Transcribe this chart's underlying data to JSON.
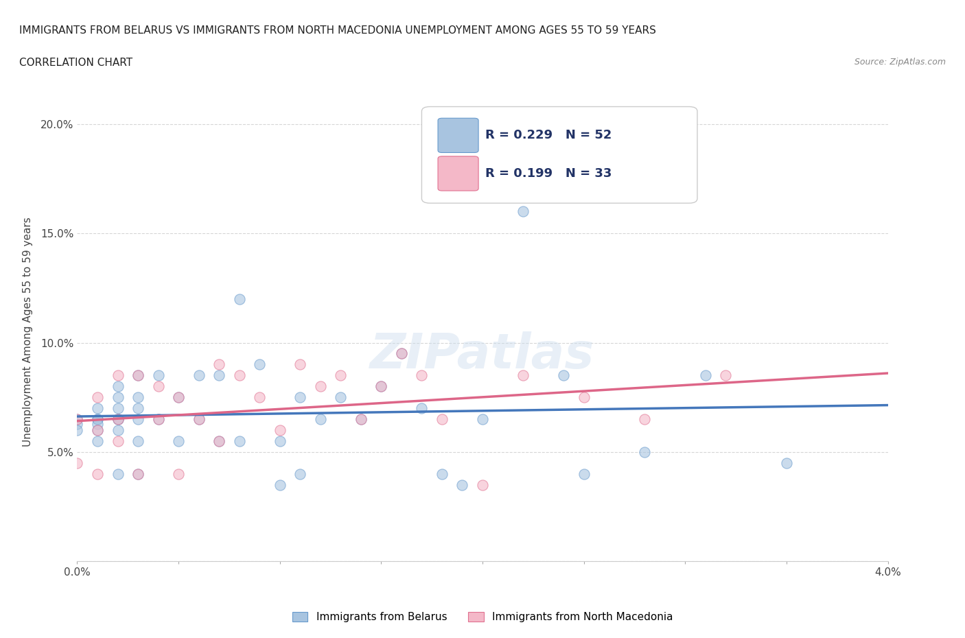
{
  "title_line1": "IMMIGRANTS FROM BELARUS VS IMMIGRANTS FROM NORTH MACEDONIA UNEMPLOYMENT AMONG AGES 55 TO 59 YEARS",
  "title_line2": "CORRELATION CHART",
  "source_text": "Source: ZipAtlas.com",
  "ylabel": "Unemployment Among Ages 55 to 59 years",
  "xlim": [
    0.0,
    0.04
  ],
  "ylim": [
    0.0,
    0.21
  ],
  "x_ticks": [
    0.0,
    0.005,
    0.01,
    0.015,
    0.02,
    0.025,
    0.03,
    0.035,
    0.04
  ],
  "y_ticks": [
    0.0,
    0.05,
    0.1,
    0.15,
    0.2
  ],
  "y_tick_labels": [
    "",
    "5.0%",
    "10.0%",
    "15.0%",
    "20.0%"
  ],
  "grid_color": "#cccccc",
  "belarus_color": "#a8c4e0",
  "belarus_color_dark": "#6699cc",
  "north_mac_color": "#f4b8c8",
  "north_mac_color_dark": "#e07090",
  "trend_belarus_color": "#4477bb",
  "trend_north_mac_color": "#dd6688",
  "belarus_x": [
    0.0,
    0.0,
    0.0,
    0.001,
    0.001,
    0.001,
    0.001,
    0.001,
    0.001,
    0.002,
    0.002,
    0.002,
    0.002,
    0.002,
    0.002,
    0.002,
    0.003,
    0.003,
    0.003,
    0.003,
    0.003,
    0.003,
    0.004,
    0.004,
    0.005,
    0.005,
    0.006,
    0.006,
    0.007,
    0.007,
    0.008,
    0.008,
    0.009,
    0.01,
    0.01,
    0.011,
    0.011,
    0.012,
    0.013,
    0.014,
    0.015,
    0.016,
    0.017,
    0.018,
    0.019,
    0.02,
    0.022,
    0.024,
    0.025,
    0.028,
    0.031,
    0.035
  ],
  "belarus_y": [
    0.065,
    0.063,
    0.06,
    0.07,
    0.065,
    0.065,
    0.063,
    0.06,
    0.055,
    0.08,
    0.075,
    0.07,
    0.065,
    0.065,
    0.06,
    0.04,
    0.085,
    0.075,
    0.07,
    0.065,
    0.055,
    0.04,
    0.085,
    0.065,
    0.075,
    0.055,
    0.085,
    0.065,
    0.085,
    0.055,
    0.12,
    0.055,
    0.09,
    0.055,
    0.035,
    0.075,
    0.04,
    0.065,
    0.075,
    0.065,
    0.08,
    0.095,
    0.07,
    0.04,
    0.035,
    0.065,
    0.16,
    0.085,
    0.04,
    0.05,
    0.085,
    0.045
  ],
  "north_mac_x": [
    0.0,
    0.0,
    0.001,
    0.001,
    0.001,
    0.002,
    0.002,
    0.002,
    0.003,
    0.003,
    0.004,
    0.004,
    0.005,
    0.005,
    0.006,
    0.007,
    0.007,
    0.008,
    0.009,
    0.01,
    0.011,
    0.012,
    0.013,
    0.014,
    0.015,
    0.016,
    0.017,
    0.018,
    0.02,
    0.022,
    0.025,
    0.028,
    0.032
  ],
  "north_mac_y": [
    0.065,
    0.045,
    0.075,
    0.06,
    0.04,
    0.085,
    0.065,
    0.055,
    0.085,
    0.04,
    0.08,
    0.065,
    0.075,
    0.04,
    0.065,
    0.09,
    0.055,
    0.085,
    0.075,
    0.06,
    0.09,
    0.08,
    0.085,
    0.065,
    0.08,
    0.095,
    0.085,
    0.065,
    0.035,
    0.085,
    0.075,
    0.065,
    0.085
  ],
  "watermark_text": "ZIPatlas",
  "marker_size": 120,
  "marker_alpha": 0.6,
  "legend_label_belarus": "Immigrants from Belarus",
  "legend_label_north_mac": "Immigrants from North Macedonia"
}
